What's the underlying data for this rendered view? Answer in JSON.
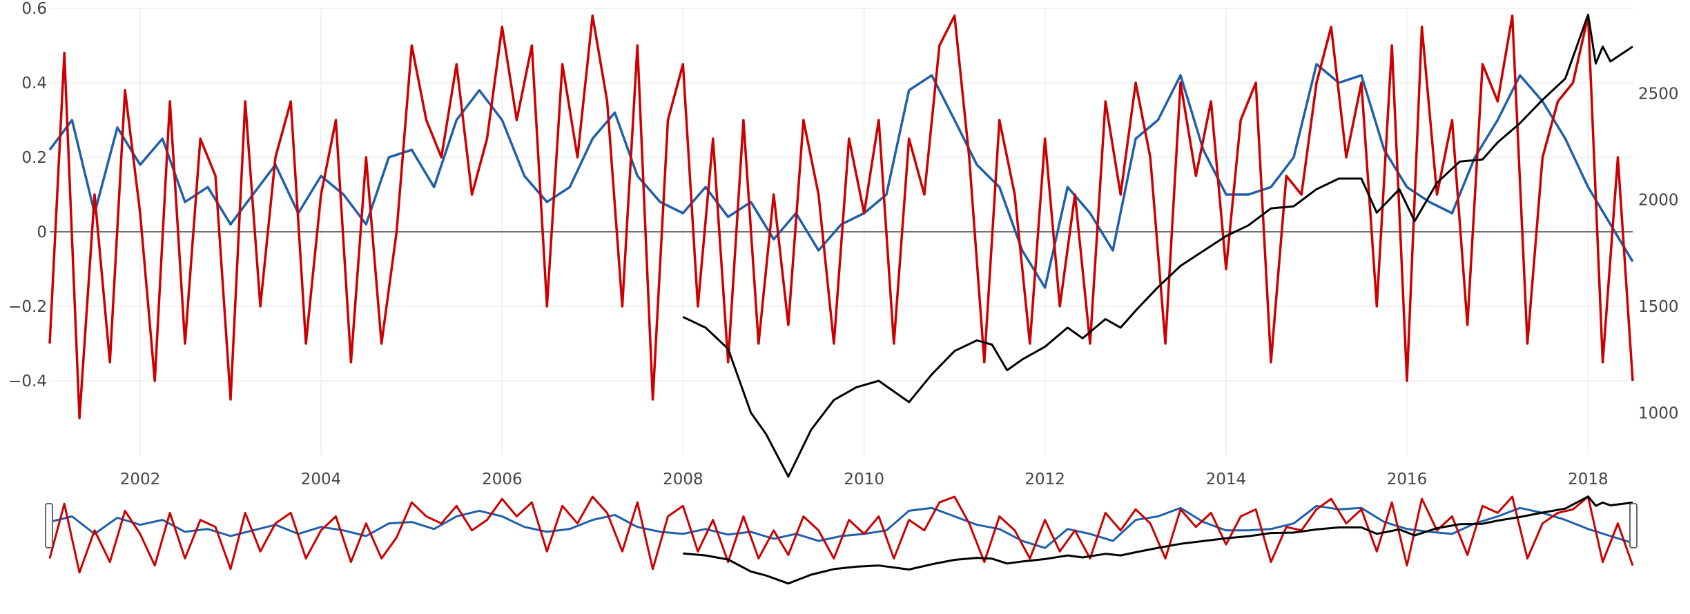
{
  "chart_data": {
    "type": "line",
    "title": "",
    "x_range": [
      "2001-01-01",
      "2018-06-30"
    ],
    "y_left_range": [
      -0.6,
      0.6
    ],
    "y_right_range": [
      800,
      2900
    ],
    "x_ticks": [
      {
        "date": "2002-01-01",
        "label": "2002"
      },
      {
        "date": "2004-01-01",
        "label": "2004"
      },
      {
        "date": "2006-01-01",
        "label": "2006"
      },
      {
        "date": "2008-01-01",
        "label": "2008"
      },
      {
        "date": "2010-01-01",
        "label": "2010"
      },
      {
        "date": "2012-01-01",
        "label": "2012"
      },
      {
        "date": "2014-01-01",
        "label": "2014"
      },
      {
        "date": "2016-01-01",
        "label": "2016"
      },
      {
        "date": "2018-01-01",
        "label": "2018"
      }
    ],
    "y_left_ticks": [
      {
        "value": 0.6,
        "label": "0.6"
      },
      {
        "value": 0.4,
        "label": "0.4"
      },
      {
        "value": 0.2,
        "label": "0.2"
      },
      {
        "value": 0,
        "label": "0"
      },
      {
        "value": -0.2,
        "label": "−0.2"
      },
      {
        "value": -0.4,
        "label": "−0.4"
      }
    ],
    "y_right_ticks": [
      {
        "value": 2500,
        "label": "2500"
      },
      {
        "value": 2000,
        "label": "2000"
      },
      {
        "value": 1500,
        "label": "1500"
      },
      {
        "value": 1000,
        "label": "1000"
      }
    ],
    "grid": true,
    "zero_line": true,
    "range_slider": true,
    "colors": {
      "blue": "#1f5fa8",
      "red": "#cc0000",
      "black": "#000000"
    },
    "series": [
      {
        "axis": "left",
        "color": "#1f5fa8",
        "x": [
          "2001-01-01",
          "2001-04-01",
          "2001-07-01",
          "2001-10-01",
          "2002-01-01",
          "2002-04-01",
          "2002-07-01",
          "2002-10-01",
          "2003-01-01",
          "2003-04-01",
          "2003-07-01",
          "2003-10-01",
          "2004-01-01",
          "2004-04-01",
          "2004-07-01",
          "2004-10-01",
          "2005-01-01",
          "2005-04-01",
          "2005-07-01",
          "2005-10-01",
          "2006-01-01",
          "2006-04-01",
          "2006-07-01",
          "2006-10-01",
          "2007-01-01",
          "2007-04-01",
          "2007-07-01",
          "2007-10-01",
          "2008-01-01",
          "2008-04-01",
          "2008-07-01",
          "2008-10-01",
          "2009-01-01",
          "2009-04-01",
          "2009-07-01",
          "2009-10-01",
          "2010-01-01",
          "2010-04-01",
          "2010-07-01",
          "2010-10-01",
          "2011-01-01",
          "2011-04-01",
          "2011-07-01",
          "2011-10-01",
          "2012-01-01",
          "2012-04-01",
          "2012-07-01",
          "2012-10-01",
          "2013-01-01",
          "2013-04-01",
          "2013-07-01",
          "2013-10-01",
          "2014-01-01",
          "2014-04-01",
          "2014-07-01",
          "2014-10-01",
          "2015-01-01",
          "2015-04-01",
          "2015-07-01",
          "2015-10-01",
          "2016-01-01",
          "2016-04-01",
          "2016-07-01",
          "2016-10-01",
          "2017-01-01",
          "2017-04-01",
          "2017-07-01",
          "2017-10-01",
          "2018-01-01",
          "2018-04-01",
          "2018-06-30"
        ],
        "y": [
          0.22,
          0.3,
          0.05,
          0.28,
          0.18,
          0.25,
          0.08,
          0.12,
          0.02,
          0.1,
          0.18,
          0.05,
          0.15,
          0.1,
          0.02,
          0.2,
          0.22,
          0.12,
          0.3,
          0.38,
          0.3,
          0.15,
          0.08,
          0.12,
          0.25,
          0.32,
          0.15,
          0.08,
          0.05,
          0.12,
          0.04,
          0.08,
          -0.02,
          0.05,
          -0.05,
          0.02,
          0.05,
          0.1,
          0.38,
          0.42,
          0.3,
          0.18,
          0.12,
          -0.05,
          -0.15,
          0.12,
          0.05,
          -0.05,
          0.25,
          0.3,
          0.42,
          0.22,
          0.1,
          0.1,
          0.12,
          0.2,
          0.45,
          0.4,
          0.42,
          0.22,
          0.12,
          0.08,
          0.05,
          0.2,
          0.3,
          0.42,
          0.35,
          0.25,
          0.12,
          0.02,
          -0.08
        ]
      },
      {
        "axis": "left",
        "color": "#cc0000",
        "x": [
          "2001-01-01",
          "2001-03-01",
          "2001-05-01",
          "2001-07-01",
          "2001-09-01",
          "2001-11-01",
          "2002-01-01",
          "2002-03-01",
          "2002-05-01",
          "2002-07-01",
          "2002-09-01",
          "2002-11-01",
          "2003-01-01",
          "2003-03-01",
          "2003-05-01",
          "2003-07-01",
          "2003-09-01",
          "2003-11-01",
          "2004-01-01",
          "2004-03-01",
          "2004-05-01",
          "2004-07-01",
          "2004-09-01",
          "2004-11-01",
          "2005-01-01",
          "2005-03-01",
          "2005-05-01",
          "2005-07-01",
          "2005-09-01",
          "2005-11-01",
          "2006-01-01",
          "2006-03-01",
          "2006-05-01",
          "2006-07-01",
          "2006-09-01",
          "2006-11-01",
          "2007-01-01",
          "2007-03-01",
          "2007-05-01",
          "2007-07-01",
          "2007-09-01",
          "2007-11-01",
          "2008-01-01",
          "2008-03-01",
          "2008-05-01",
          "2008-07-01",
          "2008-09-01",
          "2008-11-01",
          "2009-01-01",
          "2009-03-01",
          "2009-05-01",
          "2009-07-01",
          "2009-09-01",
          "2009-11-01",
          "2010-01-01",
          "2010-03-01",
          "2010-05-01",
          "2010-07-01",
          "2010-09-01",
          "2010-11-01",
          "2011-01-01",
          "2011-03-01",
          "2011-05-01",
          "2011-07-01",
          "2011-09-01",
          "2011-11-01",
          "2012-01-01",
          "2012-03-01",
          "2012-05-01",
          "2012-07-01",
          "2012-09-01",
          "2012-11-01",
          "2013-01-01",
          "2013-03-01",
          "2013-05-01",
          "2013-07-01",
          "2013-09-01",
          "2013-11-01",
          "2014-01-01",
          "2014-03-01",
          "2014-05-01",
          "2014-07-01",
          "2014-09-01",
          "2014-11-01",
          "2015-01-01",
          "2015-03-01",
          "2015-05-01",
          "2015-07-01",
          "2015-09-01",
          "2015-11-01",
          "2016-01-01",
          "2016-03-01",
          "2016-05-01",
          "2016-07-01",
          "2016-09-01",
          "2016-11-01",
          "2017-01-01",
          "2017-03-01",
          "2017-05-01",
          "2017-07-01",
          "2017-09-01",
          "2017-11-01",
          "2018-01-01",
          "2018-03-01",
          "2018-05-01",
          "2018-06-30"
        ],
        "y": [
          -0.3,
          0.48,
          -0.5,
          0.1,
          -0.35,
          0.38,
          0.05,
          -0.4,
          0.35,
          -0.3,
          0.25,
          0.15,
          -0.45,
          0.35,
          -0.2,
          0.2,
          0.35,
          -0.3,
          0.1,
          0.3,
          -0.35,
          0.2,
          -0.3,
          0.0,
          0.5,
          0.3,
          0.2,
          0.45,
          0.1,
          0.25,
          0.55,
          0.3,
          0.5,
          -0.2,
          0.45,
          0.2,
          0.58,
          0.35,
          -0.2,
          0.5,
          -0.45,
          0.3,
          0.45,
          -0.2,
          0.25,
          -0.35,
          0.3,
          -0.3,
          0.1,
          -0.25,
          0.3,
          0.1,
          -0.3,
          0.25,
          0.05,
          0.3,
          -0.3,
          0.25,
          0.1,
          0.5,
          0.58,
          0.2,
          -0.35,
          0.3,
          0.1,
          -0.3,
          0.25,
          -0.2,
          0.1,
          -0.3,
          0.35,
          0.1,
          0.4,
          0.2,
          -0.3,
          0.4,
          0.15,
          0.35,
          -0.1,
          0.3,
          0.4,
          -0.35,
          0.15,
          0.1,
          0.4,
          0.55,
          0.2,
          0.4,
          -0.2,
          0.5,
          -0.4,
          0.55,
          0.1,
          0.3,
          -0.25,
          0.45,
          0.35,
          0.58,
          -0.3,
          0.2,
          0.35,
          0.4,
          0.58,
          -0.35,
          0.2,
          -0.4
        ]
      },
      {
        "axis": "right",
        "color": "#000000",
        "x": [
          "2008-01-01",
          "2008-04-01",
          "2008-07-01",
          "2008-10-01",
          "2008-12-01",
          "2009-03-01",
          "2009-06-01",
          "2009-09-01",
          "2009-12-01",
          "2010-03-01",
          "2010-07-01",
          "2010-10-01",
          "2011-01-01",
          "2011-04-01",
          "2011-06-01",
          "2011-08-01",
          "2011-10-01",
          "2012-01-01",
          "2012-04-01",
          "2012-06-01",
          "2012-09-01",
          "2012-11-01",
          "2013-01-01",
          "2013-04-01",
          "2013-07-01",
          "2013-10-01",
          "2014-01-01",
          "2014-04-01",
          "2014-07-01",
          "2014-10-01",
          "2015-01-01",
          "2015-04-01",
          "2015-07-01",
          "2015-09-01",
          "2015-12-01",
          "2016-02-01",
          "2016-05-01",
          "2016-08-01",
          "2016-11-01",
          "2017-01-01",
          "2017-04-01",
          "2017-07-01",
          "2017-10-01",
          "2018-01-01",
          "2018-02-01",
          "2018-03-01",
          "2018-04-01",
          "2018-06-30"
        ],
        "y": [
          1450,
          1400,
          1300,
          1000,
          900,
          700,
          920,
          1060,
          1120,
          1150,
          1050,
          1180,
          1290,
          1340,
          1320,
          1200,
          1250,
          1310,
          1400,
          1350,
          1440,
          1400,
          1480,
          1590,
          1690,
          1760,
          1830,
          1880,
          1960,
          1970,
          2050,
          2100,
          2100,
          1940,
          2050,
          1900,
          2080,
          2180,
          2190,
          2270,
          2360,
          2470,
          2570,
          2870,
          2640,
          2720,
          2650,
          2720
        ]
      }
    ]
  }
}
